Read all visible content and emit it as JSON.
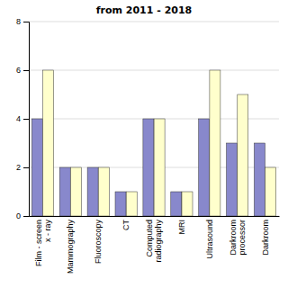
{
  "chart_data": {
    "type": "bar",
    "title": "from 2011 - 2018",
    "categories": [
      "Film - screen\n x - ray",
      "Mammography",
      "Fluoroscopy",
      "CT",
      "Computed\nradiography",
      "MRI",
      "Ultrasound",
      "Darkroom\n processor",
      "Darkroom"
    ],
    "series": [
      {
        "color": "#8888cc",
        "values": [
          4,
          2,
          2,
          1,
          4,
          1,
          4,
          3,
          3
        ]
      },
      {
        "color": "#ffffcc",
        "values": [
          6,
          2,
          2,
          1,
          4,
          1,
          6,
          5,
          2
        ]
      }
    ],
    "ylim": [
      0,
      8
    ],
    "yticks": [
      0,
      2,
      4,
      6,
      8
    ],
    "grid": true
  }
}
